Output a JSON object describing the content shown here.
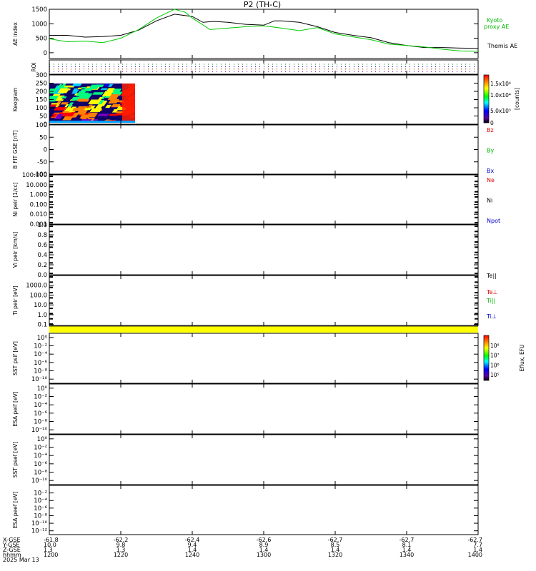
{
  "title": "P2 (TH-C)",
  "date_label": "2025 Mar 13",
  "time_axis": {
    "row_labels": [
      "X-GSE",
      "Y-GSE",
      "Z-GSE",
      "hhmm"
    ],
    "ticks": [
      {
        "x": "-61.8",
        "y": "10.0",
        "z": "1.3",
        "t": "1200"
      },
      {
        "x": "-62.2",
        "y": "9.8",
        "z": "1.3",
        "t": "1220"
      },
      {
        "x": "-62.4",
        "y": "9.4",
        "z": "1.4",
        "t": "1240"
      },
      {
        "x": "-62.6",
        "y": "8.9",
        "z": "1.4",
        "t": "1300"
      },
      {
        "x": "-62.7",
        "y": "8.5",
        "z": "1.4",
        "t": "1320"
      },
      {
        "x": "-62.7",
        "y": "8.1",
        "z": "1.4",
        "t": "1340"
      },
      {
        "x": "-62.7",
        "y": "7.7",
        "z": "1.4",
        "t": "1400"
      }
    ]
  },
  "chart_data": [
    {
      "type": "line",
      "id": "ae",
      "ylabel": "AE index",
      "ylim": [
        -200,
        1500
      ],
      "yticks": [
        "1500",
        "1000",
        "500",
        "0"
      ],
      "ytick_values": [
        1500,
        1000,
        500,
        0
      ],
      "x_range": [
        0,
        120
      ],
      "series": [
        {
          "name": "Themis AE",
          "color": "#000000",
          "x": [
            0,
            5,
            10,
            15,
            20,
            25,
            30,
            35,
            40,
            43,
            46,
            50,
            55,
            60,
            63,
            65,
            70,
            75,
            80,
            85,
            90,
            95,
            100,
            105,
            110,
            115,
            120
          ],
          "y": [
            600,
            600,
            540,
            560,
            600,
            780,
            1100,
            1330,
            1250,
            1050,
            1080,
            1050,
            980,
            950,
            1100,
            1100,
            1050,
            900,
            700,
            600,
            520,
            350,
            250,
            180,
            180,
            160,
            150
          ]
        },
        {
          "name": "Kyoto proxy AE",
          "color": "#00cc00",
          "x": [
            0,
            5,
            10,
            15,
            20,
            25,
            30,
            35,
            38,
            40,
            45,
            50,
            55,
            60,
            65,
            70,
            75,
            80,
            85,
            90,
            95,
            100,
            105,
            110,
            115,
            120
          ],
          "y": [
            480,
            380,
            400,
            350,
            500,
            800,
            1200,
            1500,
            1400,
            1200,
            800,
            850,
            900,
            930,
            850,
            760,
            870,
            650,
            550,
            450,
            300,
            250,
            200,
            120,
            60,
            50
          ]
        }
      ],
      "legend": [
        "Kyoto",
        "proxy AE",
        "Themis AE"
      ]
    },
    {
      "type": "line",
      "id": "roi",
      "ylabel": "ROI"
    },
    {
      "type": "heatmap",
      "id": "keogram",
      "ylabel": "Keogram",
      "ylim": [
        0,
        300
      ],
      "yticks": [
        "300",
        "250",
        "200",
        "150",
        "100",
        "50",
        "0"
      ],
      "ytick_values": [
        300,
        250,
        200,
        150,
        100,
        50,
        0
      ],
      "x_extent": [
        0,
        24
      ],
      "colorbar_label": "[counts]",
      "colorbar_ticks": [
        "1.5x10⁴",
        "1.0x10⁴",
        "5.0x10³",
        "0"
      ]
    },
    {
      "type": "line",
      "id": "bfield",
      "ylabel": "B FIT GSE [nT]",
      "ylim": [
        -100,
        100
      ],
      "yticks": [
        "100",
        "50",
        "0",
        "-50",
        "-100"
      ],
      "ytick_values": [
        100,
        50,
        0,
        -50,
        -100
      ],
      "legend": [
        {
          "name": "Bz",
          "color": "#dd0000"
        },
        {
          "name": "By",
          "color": "#00bb00"
        },
        {
          "name": "Bx",
          "color": "#0000cc"
        }
      ]
    },
    {
      "type": "line",
      "id": "ni",
      "ylabel": "Ni peir [1/cc]",
      "ylim": [
        0.001,
        100
      ],
      "log": true,
      "yticks": [
        "100.000",
        "10.000",
        "1.000",
        "0.100",
        "0.010",
        "0.001"
      ],
      "ytick_values": [
        100,
        10,
        1,
        0.1,
        0.01,
        0.001
      ],
      "legend": [
        {
          "name": "Ne",
          "color": "#dd0000"
        },
        {
          "name": "Ni",
          "color": "#000000"
        },
        {
          "name": "Npot",
          "color": "#0000cc"
        }
      ]
    },
    {
      "type": "line",
      "id": "vi",
      "ylabel": "Vi peir [km/s]",
      "ylim": [
        0,
        1
      ],
      "yticks": [
        "1.0",
        "0.8",
        "0.6",
        "0.4",
        "0.2",
        "0.0"
      ],
      "ytick_values": [
        1.0,
        0.8,
        0.6,
        0.4,
        0.2,
        0.0
      ]
    },
    {
      "type": "line",
      "id": "ti",
      "ylabel": "Ti peir [eV]",
      "ylim": [
        0.08,
        10000
      ],
      "log": true,
      "yticks": [
        "1000.0",
        "100.0",
        "10.0",
        "1.0",
        "0.1"
      ],
      "ytick_values": [
        1000,
        100,
        10,
        1,
        0.1
      ],
      "legend": [
        {
          "name": "Te||",
          "color": "#000000"
        },
        {
          "name": "Te⊥",
          "color": "#dd0000"
        },
        {
          "name": "Ti||",
          "color": "#00bb00"
        },
        {
          "name": "Ti⊥",
          "color": "#0000cc"
        }
      ]
    },
    {
      "type": "heatmap",
      "id": "sst1",
      "ylabel": "SST psif [eV]",
      "ylim": [
        1e-11,
        10.0
      ],
      "log": true,
      "yticks": [
        "10⁰",
        "10⁻²",
        "10⁻⁴",
        "10⁻⁶",
        "10⁻⁸",
        "10⁻¹⁰"
      ],
      "ytick_values": [
        1,
        0.01,
        0.0001,
        1e-06,
        1e-08,
        1e-10
      ],
      "colorbar_label": "Eflux, EFU",
      "colorbar_ticks": [
        "10⁸",
        "10⁷",
        "10⁶",
        "10⁵"
      ]
    },
    {
      "type": "heatmap",
      "id": "esa1",
      "ylabel": "ESA peif [eV]",
      "ylim": [
        1e-11,
        10.0
      ],
      "log": true,
      "yticks": [
        "10⁰",
        "10⁻²",
        "10⁻⁴",
        "10⁻⁶",
        "10⁻⁸",
        "10⁻¹⁰"
      ],
      "ytick_values": [
        1,
        0.01,
        0.0001,
        1e-06,
        1e-08,
        1e-10
      ]
    },
    {
      "type": "heatmap",
      "id": "sst2",
      "ylabel": "SST psef [eV]",
      "ylim": [
        1e-11,
        10.0
      ],
      "log": true,
      "yticks": [
        "10⁰",
        "10⁻²",
        "10⁻⁴",
        "10⁻⁶",
        "10⁻⁸",
        "10⁻¹⁰"
      ],
      "ytick_values": [
        1,
        0.01,
        0.0001,
        1e-06,
        1e-08,
        1e-10
      ]
    },
    {
      "type": "heatmap",
      "id": "esa2",
      "ylabel": "ESA peef [eV]",
      "ylim": [
        1e-13,
        1
      ],
      "log": true,
      "yticks": [
        "10⁻²",
        "10⁻⁴",
        "10⁻⁶",
        "10⁻⁸",
        "10⁻¹⁰",
        "10⁻¹²"
      ],
      "ytick_values": [
        0.01,
        0.0001,
        1e-06,
        1e-08,
        1e-10,
        1e-12
      ]
    }
  ]
}
